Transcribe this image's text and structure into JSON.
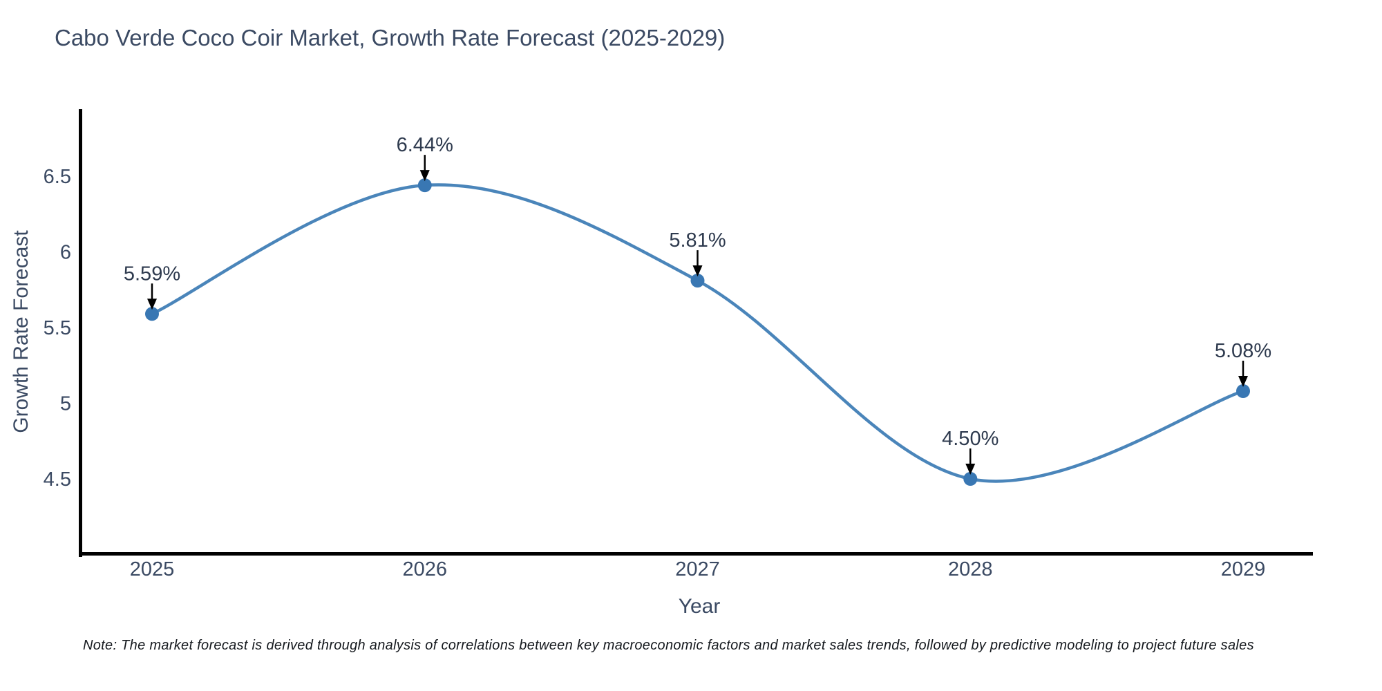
{
  "title": "Cabo Verde Coco Coir Market, Growth Rate Forecast (2025-2029)",
  "note": "Note: The market forecast is derived through analysis of correlations between key macroeconomic factors and market sales trends, followed by predictive modeling to project future sales",
  "colors": {
    "line": "#4A85BA",
    "marker": "#3977B3",
    "arrow": "#000000",
    "axis_line": "#000000",
    "text": "#3b4a63",
    "point_label_text": "#2e3a4e",
    "background": "#ffffff"
  },
  "chart_data": {
    "type": "line",
    "title": "Cabo Verde Coco Coir Market, Growth Rate Forecast (2025-2029)",
    "x": [
      2025,
      2026,
      2027,
      2028,
      2029
    ],
    "values": [
      5.59,
      6.44,
      5.81,
      4.5,
      5.08
    ],
    "point_labels": [
      "5.59%",
      "6.44%",
      "5.81%",
      "4.50%",
      "5.08%"
    ],
    "xlabel": "Year",
    "ylabel": "Growth Rate Forecast",
    "xticks": [
      "2025",
      "2026",
      "2027",
      "2028",
      "2029"
    ],
    "yticks": [
      6.5,
      6,
      5.5,
      5,
      4.5
    ],
    "ylim": [
      4.0,
      6.95
    ],
    "xlim": [
      2024.74,
      2029.26
    ],
    "grid": false,
    "legend_position": "none",
    "line_shape": "spline",
    "markers": true,
    "point_annotations_with_arrows": true
  }
}
